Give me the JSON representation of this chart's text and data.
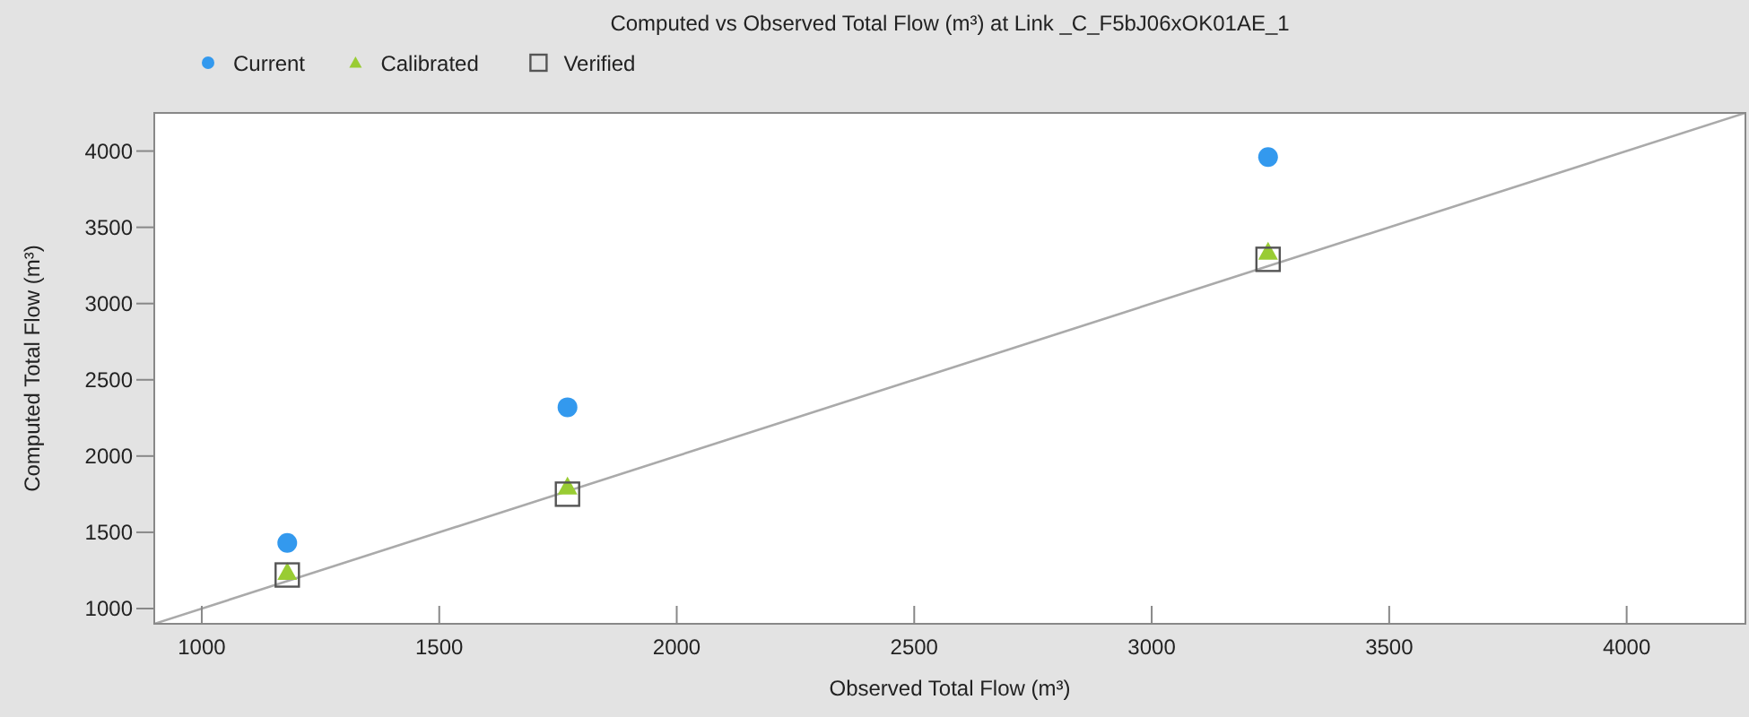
{
  "chart_data": {
    "type": "scatter",
    "title": "Computed vs Observed Total Flow (m³) at Link _C_F5bJ06xOK01AE_1",
    "xlabel": "Observed Total Flow (m³)",
    "ylabel": "Computed Total Flow (m³)",
    "xlim": [
      900,
      4250
    ],
    "ylim": [
      900,
      4250
    ],
    "xticks": [
      1000,
      1500,
      2000,
      2500,
      3000,
      3500,
      4000
    ],
    "yticks": [
      1000,
      1500,
      2000,
      2500,
      3000,
      3500,
      4000
    ],
    "grid": false,
    "legend": "top left",
    "x": [
      1180,
      1770,
      3245
    ],
    "series": [
      {
        "name": "Current",
        "color": "#3399ee",
        "marker": "circle",
        "values": [
          1430,
          2320,
          3960
        ]
      },
      {
        "name": "Calibrated",
        "color": "#99cc33",
        "marker": "triangle",
        "values": [
          1240,
          1800,
          3340
        ]
      },
      {
        "name": "Verified",
        "color": "#555555",
        "marker": "square",
        "values": [
          1220,
          1750,
          3290
        ]
      },
      {
        "type": "line",
        "color": "#aaaaaa",
        "marker": "none",
        "x": [
          900,
          4250
        ],
        "values": [
          900,
          4250
        ]
      }
    ]
  }
}
